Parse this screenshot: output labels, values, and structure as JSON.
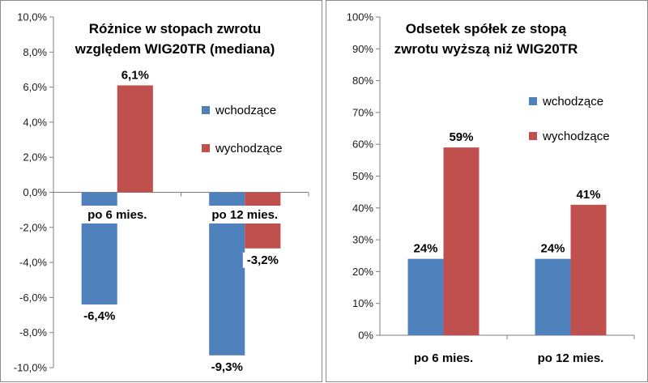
{
  "chart_data": [
    {
      "type": "bar",
      "title_lines": [
        "Różnice w stopach zwrotu",
        "względem WIG20TR (mediana)"
      ],
      "categories": [
        "po 6 mies.",
        "po 12 mies."
      ],
      "series": [
        {
          "name": "wchodzące",
          "values": [
            -6.4,
            -9.3
          ],
          "labels": [
            "-6,4%",
            "-9,3%"
          ],
          "color": "#4f81bd"
        },
        {
          "name": "wychodzące",
          "values": [
            6.1,
            -3.2
          ],
          "labels": [
            "6,1%",
            "-3,2%"
          ],
          "color": "#c0504d"
        }
      ],
      "ylim": [
        -10,
        10
      ],
      "yticks": [
        10,
        8,
        6,
        4,
        2,
        0,
        -2,
        -4,
        -6,
        -8,
        -10
      ],
      "ytick_labels": [
        "10,0%",
        "8,0%",
        "6,0%",
        "4,0%",
        "2,0%",
        "0,0%",
        "-2,0%",
        "-4,0%",
        "-6,0%",
        "-8,0%",
        "-10,0%"
      ],
      "grid": false,
      "legend": "right"
    },
    {
      "type": "bar",
      "title_lines": [
        "Odsetek spółek ze stopą",
        "zwrotu wyższą niż WIG20TR"
      ],
      "categories": [
        "po 6 mies.",
        "po 12 mies."
      ],
      "series": [
        {
          "name": "wchodzące",
          "values": [
            24,
            24
          ],
          "labels": [
            "24%",
            "24%"
          ],
          "color": "#4f81bd"
        },
        {
          "name": "wychodzące",
          "values": [
            59,
            41
          ],
          "labels": [
            "59%",
            "41%"
          ],
          "color": "#c0504d"
        }
      ],
      "ylim": [
        0,
        100
      ],
      "yticks": [
        100,
        90,
        80,
        70,
        60,
        50,
        40,
        30,
        20,
        10,
        0
      ],
      "ytick_labels": [
        "100%",
        "90%",
        "80%",
        "70%",
        "60%",
        "50%",
        "40%",
        "30%",
        "20%",
        "10%",
        "0%"
      ],
      "grid": false,
      "legend": "right"
    }
  ]
}
